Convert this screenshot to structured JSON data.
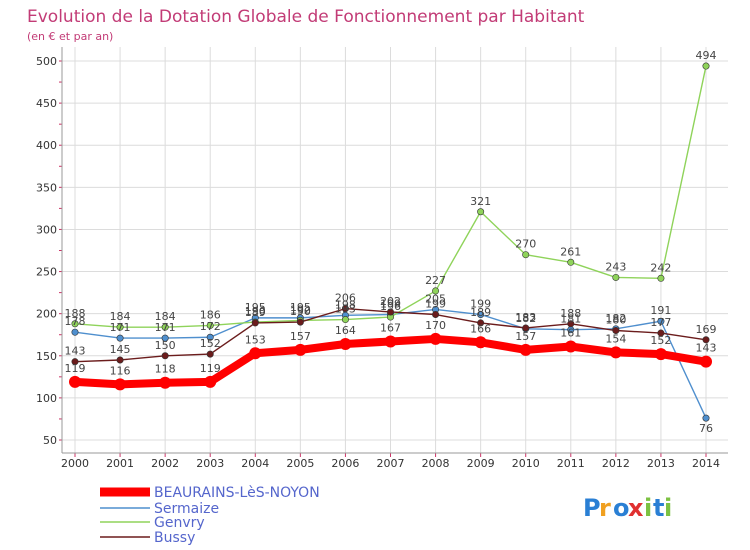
{
  "title": "Evolution de la Dotation Globale de Fonctionnement par Habitant",
  "subtitle": "(en € et par an)",
  "brand": "Proxiti",
  "chart_data": {
    "type": "line",
    "title": "Evolution de la Dotation Globale de Fonctionnement par Habitant",
    "ylabel": "(en € et par an)",
    "xlabel": "",
    "x": [
      "2000",
      "2001",
      "2002",
      "2003",
      "2004",
      "2005",
      "2006",
      "2007",
      "2008",
      "2009",
      "2010",
      "2011",
      "2012",
      "2013",
      "2014"
    ],
    "ylim": [
      50,
      500
    ],
    "yticks": [
      50,
      100,
      150,
      200,
      250,
      300,
      350,
      400,
      450,
      500
    ],
    "grid": true,
    "legend": "bottom-left",
    "series": [
      {
        "name": "BEAURAINS-LèS-NOYON",
        "color": "#ff0000",
        "thick": true,
        "values": [
          119,
          116,
          118,
          119,
          153,
          157,
          164,
          167,
          170,
          166,
          157,
          161,
          154,
          152,
          143
        ]
      },
      {
        "name": "Sermaize",
        "color": "#4f8fce",
        "thick": false,
        "values": [
          178,
          171,
          171,
          172,
          195,
          195,
          198,
          199,
          205,
          199,
          182,
          181,
          182,
          191,
          76
        ]
      },
      {
        "name": "Genvry",
        "color": "#8fd35a",
        "thick": false,
        "values": [
          188,
          184,
          184,
          186,
          190,
          192,
          193,
          196,
          227,
          321,
          270,
          261,
          243,
          242,
          494
        ]
      },
      {
        "name": "Bussy",
        "color": "#6b1c1c",
        "thick": false,
        "values": [
          143,
          145,
          150,
          152,
          189,
          190,
          206,
          202,
          199,
          189,
          183,
          188,
          180,
          177,
          169
        ]
      }
    ]
  }
}
